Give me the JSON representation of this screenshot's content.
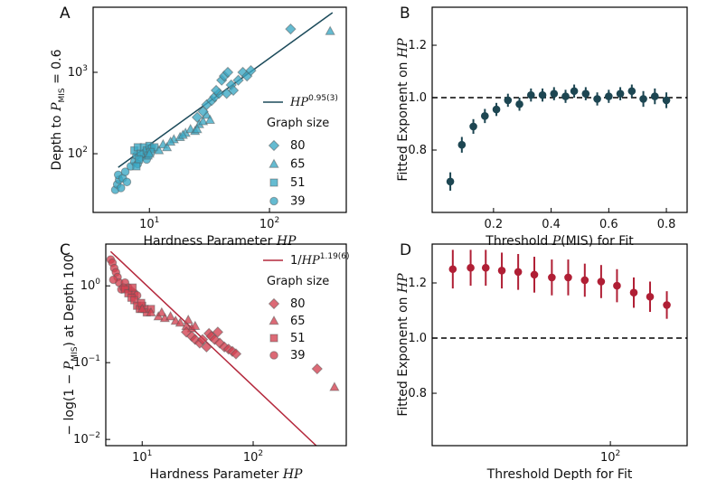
{
  "chart_data": [
    {
      "type": "scatter",
      "panel": "A",
      "xscale": "log",
      "yscale": "log",
      "xlim": [
        3.4,
        436
      ],
      "ylim": [
        19,
        6300
      ],
      "xticks": [
        {
          "value": 10,
          "label": "10",
          "exponent": "1"
        },
        {
          "value": 100,
          "label": "10",
          "exponent": "2"
        }
      ],
      "yticks": [
        {
          "value": 100,
          "label": "10",
          "exponent": "2"
        },
        {
          "value": 1000,
          "label": "10",
          "exponent": "3"
        }
      ],
      "xlabel": [
        {
          "text": "Hardness Parameter "
        },
        {
          "text": "HP",
          "style": "italic"
        }
      ],
      "ylabel": [
        {
          "text": "Depth to "
        },
        {
          "text": "P",
          "style": "italic"
        },
        {
          "text": "MIS",
          "style": "sub"
        },
        {
          "text": " = 0.6"
        }
      ],
      "fit": {
        "name": [
          {
            "text": "HP",
            "style": "italic"
          },
          {
            "text": "0.95(3)",
            "style": "sup"
          }
        ],
        "color": "#1b4a5a",
        "x": [
          5.5,
          335
        ],
        "values": [
          68,
          5400
        ]
      },
      "legend_title": "Graph size",
      "series": [
        {
          "name": "80",
          "marker": "diamond",
          "color": "#3aa8c4",
          "x": [
            25,
            28,
            30,
            33,
            35,
            38,
            40,
            42,
            45,
            48,
            50,
            55,
            60,
            65,
            70,
            36,
            44,
            150
          ],
          "values": [
            280,
            330,
            400,
            450,
            500,
            550,
            800,
            900,
            1000,
            700,
            600,
            800,
            1000,
            900,
            1050,
            600,
            550,
            3400
          ]
        },
        {
          "name": "65",
          "marker": "triangle",
          "color": "#3aa8c4",
          "x": [
            10,
            12,
            13,
            14,
            16,
            18,
            20,
            22,
            24,
            26,
            28,
            30,
            32,
            15,
            19,
            25,
            320
          ],
          "values": [
            100,
            110,
            130,
            120,
            150,
            160,
            180,
            200,
            190,
            230,
            250,
            300,
            260,
            140,
            170,
            200,
            3200
          ]
        },
        {
          "name": "51",
          "marker": "square",
          "color": "#3aa8c4",
          "x": [
            7.5,
            8,
            8.5,
            9,
            9.5,
            10,
            10.5,
            8.2,
            9.8,
            11,
            7.8,
            10.2
          ],
          "values": [
            110,
            120,
            100,
            120,
            110,
            125,
            115,
            85,
            95,
            120,
            70,
            105
          ]
        },
        {
          "name": "39",
          "marker": "circle",
          "color": "#3aa8c4",
          "x": [
            5.2,
            5.4,
            5.6,
            5.5,
            6,
            6.3,
            7,
            7.5,
            8,
            8.5,
            9,
            6.5,
            5.8,
            7.8,
            9.5
          ],
          "values": [
            36,
            42,
            48,
            55,
            50,
            60,
            70,
            80,
            75,
            90,
            100,
            45,
            38,
            95,
            85
          ]
        }
      ]
    },
    {
      "type": "errorbar",
      "panel": "B",
      "xscale": "linear",
      "yscale": "linear",
      "xlim": [
        -0.013,
        0.872
      ],
      "ylim": [
        0.562,
        1.345
      ],
      "xticks": [
        0.2,
        0.4,
        0.6,
        0.8
      ],
      "yticks": [
        0.8,
        {
          "value": 1,
          "label": "1.0"
        },
        1.2
      ],
      "xlabel": [
        {
          "text": "Threshold "
        },
        {
          "text": "P",
          "style": "italic"
        },
        {
          "text": "(MIS) for Fit"
        }
      ],
      "ylabel": [
        {
          "text": "Fitted Exponent on "
        },
        {
          "text": "HP",
          "style": "italic"
        }
      ],
      "reference_line": 1,
      "color": "#1d4652",
      "x": [
        0.05,
        0.09,
        0.13,
        0.17,
        0.21,
        0.25,
        0.29,
        0.33,
        0.37,
        0.41,
        0.45,
        0.48,
        0.52,
        0.56,
        0.6,
        0.64,
        0.68,
        0.72,
        0.76,
        0.8
      ],
      "values": [
        0.68,
        0.82,
        0.89,
        0.93,
        0.955,
        0.99,
        0.975,
        1.01,
        1.01,
        1.015,
        1.005,
        1.025,
        1.015,
        0.995,
        1.005,
        1.015,
        1.025,
        0.995,
        1.005,
        0.99
      ],
      "errors": [
        0.035,
        0.03,
        0.028,
        0.027,
        0.025,
        0.025,
        0.025,
        0.025,
        0.025,
        0.025,
        0.025,
        0.025,
        0.025,
        0.025,
        0.025,
        0.025,
        0.025,
        0.03,
        0.03,
        0.03
      ]
    },
    {
      "type": "scatter",
      "panel": "C",
      "xscale": "log",
      "yscale": "log",
      "xlim": [
        4.7,
        690
      ],
      "ylim": [
        0.0083,
        3.5
      ],
      "xticks": [
        {
          "value": 10,
          "label": "10",
          "exponent": "1"
        },
        {
          "value": 100,
          "label": "10",
          "exponent": "2"
        }
      ],
      "yticks": [
        {
          "value": 1,
          "label": "10",
          "exponent": "0"
        },
        {
          "value": 0.1,
          "label": "10",
          "exponent": "−1"
        },
        {
          "value": 0.01,
          "label": "10",
          "exponent": "−2"
        }
      ],
      "xlabel": [
        {
          "text": "Hardness Parameter "
        },
        {
          "text": "HP",
          "style": "italic"
        }
      ],
      "ylabel": [
        {
          "text": "− log(1 − "
        },
        {
          "text": "P",
          "style": "italic"
        },
        {
          "text": "MIS",
          "style": "sub"
        },
        {
          "text": ") at Depth 100"
        }
      ],
      "fit": {
        "name": [
          {
            "text": "1/"
          },
          {
            "text": "HP",
            "style": "italic"
          },
          {
            "text": "1.19(6)",
            "style": "sup"
          }
        ],
        "color": "#b4283c",
        "x": [
          5.2,
          370
        ],
        "values": [
          2.8,
          0.0083
        ]
      },
      "legend_title": "Graph size",
      "series": [
        {
          "name": "80",
          "marker": "diamond",
          "color": "#d2404f",
          "x": [
            25,
            28,
            30,
            33,
            35,
            38,
            40,
            42,
            45,
            50,
            55,
            60,
            65,
            70,
            48,
            377
          ],
          "values": [
            0.25,
            0.22,
            0.2,
            0.18,
            0.2,
            0.16,
            0.24,
            0.22,
            0.2,
            0.18,
            0.16,
            0.15,
            0.14,
            0.13,
            0.25,
            0.083
          ]
        },
        {
          "name": "65",
          "marker": "triangle",
          "color": "#d2404f",
          "x": [
            10,
            12,
            14,
            16,
            18,
            20,
            22,
            25,
            28,
            30,
            15,
            26,
            540
          ],
          "values": [
            0.5,
            0.45,
            0.4,
            0.38,
            0.4,
            0.35,
            0.33,
            0.3,
            0.28,
            0.3,
            0.45,
            0.36,
            0.048
          ]
        },
        {
          "name": "51",
          "marker": "square",
          "color": "#d2404f",
          "x": [
            7,
            7.5,
            8,
            8.5,
            9,
            9.5,
            10,
            10.5,
            11,
            8.2,
            9.8,
            12
          ],
          "values": [
            0.9,
            0.8,
            0.7,
            0.65,
            0.55,
            0.5,
            0.55,
            0.5,
            0.45,
            0.95,
            0.6,
            0.5
          ]
        },
        {
          "name": "39",
          "marker": "circle",
          "color": "#d2404f",
          "x": [
            5.2,
            5.4,
            5.6,
            5.8,
            6,
            6.2,
            6.5,
            7,
            7.5,
            8,
            8.5,
            9,
            5.5,
            6.8
          ],
          "values": [
            2.2,
            2.0,
            1.7,
            1.5,
            1.3,
            1.1,
            0.9,
            1.1,
            0.95,
            0.85,
            0.8,
            0.75,
            1.2,
            0.95
          ]
        }
      ]
    },
    {
      "type": "errorbar",
      "panel": "D",
      "xscale": "log",
      "yscale": "linear",
      "xlim": [
        16.2,
        219
      ],
      "ylim": [
        0.61,
        1.341
      ],
      "xticks": [
        {
          "value": 100,
          "label": "10",
          "exponent": "2"
        }
      ],
      "yticks": [
        0.8,
        {
          "value": 1,
          "label": "1.0"
        },
        1.2
      ],
      "xlabel": [
        {
          "text": "Threshold Depth for Fit"
        }
      ],
      "ylabel": [
        {
          "text": "Fitted Exponent on "
        },
        {
          "text": "HP",
          "style": "italic"
        }
      ],
      "reference_line": 1,
      "color": "#b01f35",
      "x": [
        20,
        24,
        28,
        33,
        39,
        46,
        55,
        65,
        77,
        91,
        107,
        127,
        150,
        178
      ],
      "values": [
        1.25,
        1.255,
        1.255,
        1.245,
        1.24,
        1.23,
        1.22,
        1.22,
        1.21,
        1.205,
        1.19,
        1.165,
        1.15,
        1.12
      ],
      "errors": [
        0.07,
        0.065,
        0.065,
        0.065,
        0.065,
        0.065,
        0.065,
        0.065,
        0.06,
        0.06,
        0.06,
        0.055,
        0.055,
        0.05
      ]
    }
  ]
}
